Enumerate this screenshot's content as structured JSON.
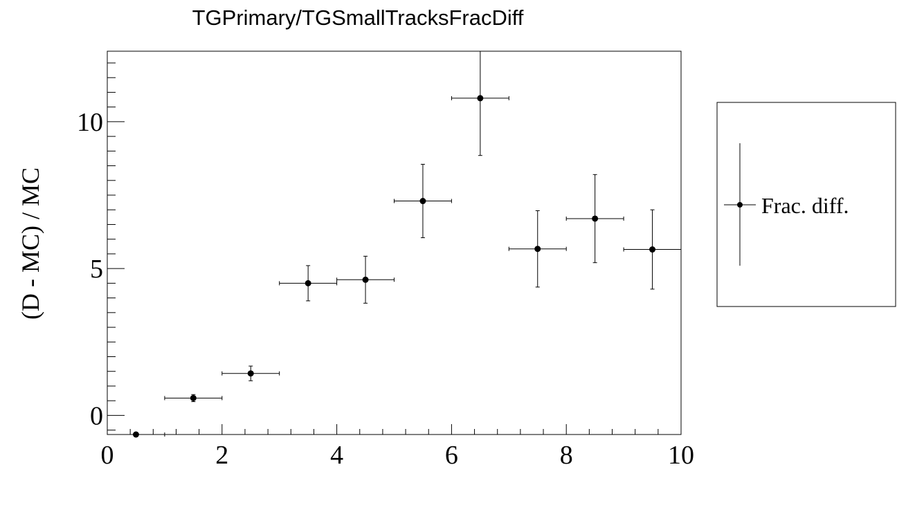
{
  "chart_data": {
    "type": "scatter",
    "title": "TGPrimary/TGSmallTracksFracDiff",
    "xlabel": "",
    "ylabel": "(D - MC) / MC",
    "xlim": [
      0,
      10
    ],
    "ylim": [
      -0.65,
      12.4
    ],
    "x_ticks": [
      "0",
      "2",
      "4",
      "6",
      "8",
      "10"
    ],
    "y_ticks": [
      "0",
      "5",
      "10"
    ],
    "legend": {
      "label": "Frac. diff.",
      "placement": "right, outside plot"
    },
    "series": [
      {
        "name": "Frac. diff.",
        "points": [
          {
            "x": 0.5,
            "y": -0.65,
            "xerr": 0.5,
            "yerr": 0.03
          },
          {
            "x": 1.5,
            "y": 0.59,
            "xerr": 0.5,
            "yerr": 0.12
          },
          {
            "x": 2.5,
            "y": 1.43,
            "xerr": 0.5,
            "yerr": 0.25
          },
          {
            "x": 3.5,
            "y": 4.5,
            "xerr": 0.5,
            "yerr": 0.6
          },
          {
            "x": 4.5,
            "y": 4.62,
            "xerr": 0.5,
            "yerr": 0.8
          },
          {
            "x": 5.5,
            "y": 7.3,
            "xerr": 0.5,
            "yerr": 1.25
          },
          {
            "x": 6.5,
            "y": 10.8,
            "xerr": 0.5,
            "yerr": 1.95
          },
          {
            "x": 7.5,
            "y": 5.67,
            "xerr": 0.5,
            "yerr": 1.3
          },
          {
            "x": 8.5,
            "y": 6.7,
            "xerr": 0.5,
            "yerr": 1.5
          },
          {
            "x": 9.5,
            "y": 5.65,
            "xerr": 0.5,
            "yerr": 1.35
          }
        ]
      }
    ]
  }
}
